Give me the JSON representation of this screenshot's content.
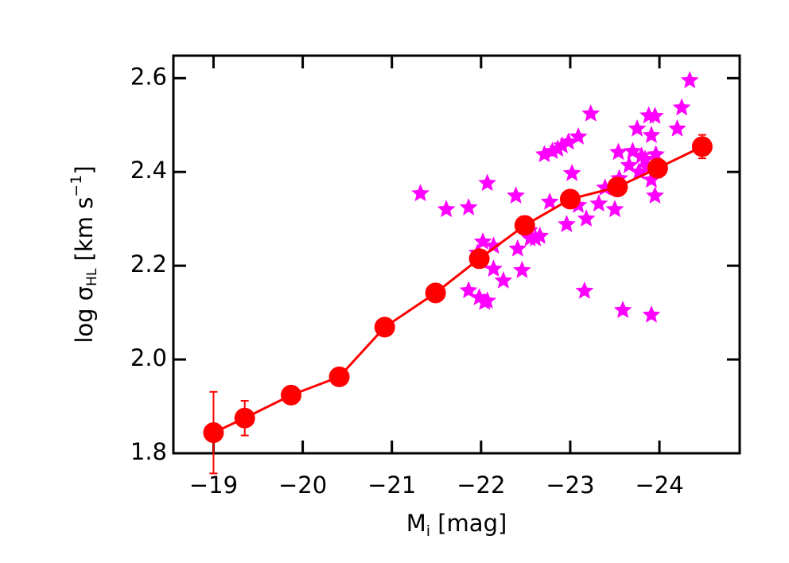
{
  "chart_data": {
    "type": "scatter",
    "x_label_parts": [
      "M",
      "i",
      " [mag]"
    ],
    "y_label_parts": [
      "log σ",
      "HL",
      " [km s",
      "−1",
      "]"
    ],
    "xlim": [
      -18.55,
      -24.9
    ],
    "ylim": [
      1.8,
      2.648
    ],
    "xticks": [
      {
        "value": -19,
        "label": "−19"
      },
      {
        "value": -20,
        "label": "−20"
      },
      {
        "value": -21,
        "label": "−21"
      },
      {
        "value": -22,
        "label": "−22"
      },
      {
        "value": -23,
        "label": "−23"
      },
      {
        "value": -24,
        "label": "−24"
      }
    ],
    "yticks": [
      1.8,
      {
        "value": 2.0,
        "label": "2.0"
      },
      2.2,
      2.4,
      2.6
    ],
    "series": [
      {
        "color": "#ff00ff",
        "marker": "star",
        "line": false,
        "x": [
          -21.32,
          -21.61,
          -21.86,
          -22.07,
          -22.02,
          -21.96,
          -21.86,
          -21.98,
          -22.04,
          -22.07,
          -22.0,
          -22.14,
          -22.25,
          -22.14,
          -22.39,
          -22.41,
          -22.46,
          -22.54,
          -22.55,
          -22.61,
          -22.66,
          -22.71,
          -22.77,
          -22.8,
          -22.86,
          -22.91,
          -22.96,
          -22.98,
          -23.02,
          -23.09,
          -23.09,
          -23.18,
          -23.16,
          -23.23,
          -23.32,
          -23.39,
          -23.5,
          -23.54,
          -23.55,
          -23.59,
          -23.66,
          -23.7,
          -23.75,
          -23.77,
          -23.8,
          -23.84,
          -23.86,
          -23.91,
          -23.91,
          -23.88,
          -23.95,
          -23.96,
          -23.95,
          -23.91,
          -24.2,
          -24.25,
          -24.34
        ],
        "values": [
          2.354,
          2.32,
          2.324,
          2.376,
          2.251,
          2.227,
          2.147,
          2.132,
          2.122,
          2.125,
          2.21,
          2.242,
          2.168,
          2.193,
          2.349,
          2.236,
          2.19,
          2.275,
          2.258,
          2.258,
          2.263,
          2.437,
          2.336,
          2.444,
          2.449,
          2.456,
          2.288,
          2.464,
          2.397,
          2.475,
          2.329,
          2.3,
          2.146,
          2.524,
          2.332,
          2.366,
          2.32,
          2.442,
          2.386,
          2.105,
          2.414,
          2.444,
          2.492,
          2.4,
          2.434,
          2.427,
          2.41,
          2.383,
          2.478,
          2.52,
          2.519,
          2.437,
          2.349,
          2.095,
          2.492,
          2.537,
          2.595
        ]
      },
      {
        "color": "#ff0000",
        "marker": "circle",
        "line": true,
        "x": [
          -19.0,
          -19.35,
          -19.87,
          -20.41,
          -20.92,
          -21.49,
          -21.98,
          -22.49,
          -23.0,
          -23.53,
          -23.98,
          -24.48
        ],
        "values": [
          1.844,
          1.875,
          1.924,
          1.963,
          2.069,
          2.142,
          2.215,
          2.286,
          2.342,
          2.368,
          2.408,
          2.454
        ],
        "errors": [
          0.087,
          0.037,
          0.015,
          0.01,
          0.008,
          0.008,
          0.01,
          0.01,
          0.01,
          0.01,
          0.02,
          0.025
        ]
      }
    ]
  }
}
